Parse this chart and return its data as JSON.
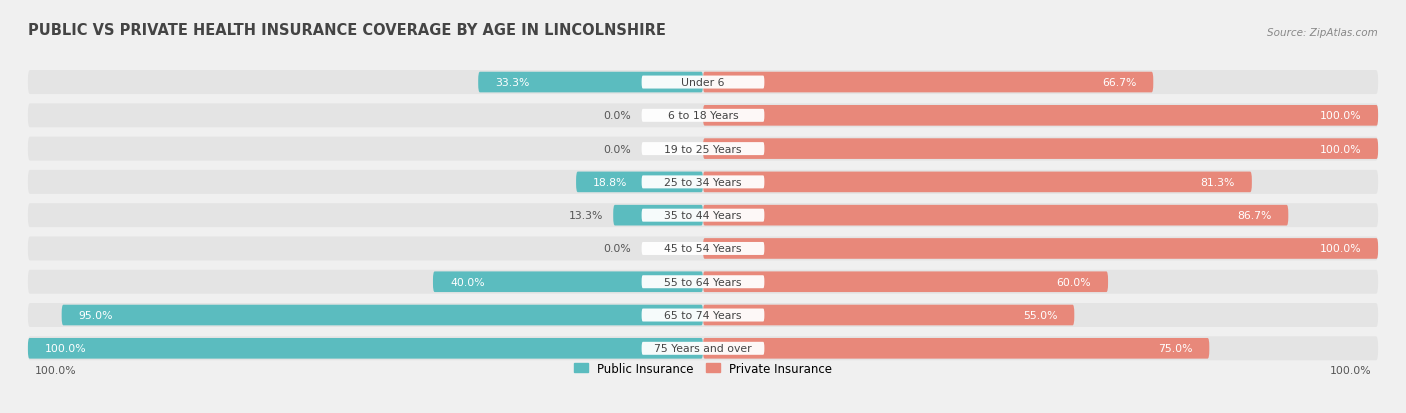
{
  "title": "PUBLIC VS PRIVATE HEALTH INSURANCE COVERAGE BY AGE IN LINCOLNSHIRE",
  "source": "Source: ZipAtlas.com",
  "categories": [
    "Under 6",
    "6 to 18 Years",
    "19 to 25 Years",
    "25 to 34 Years",
    "35 to 44 Years",
    "45 to 54 Years",
    "55 to 64 Years",
    "65 to 74 Years",
    "75 Years and over"
  ],
  "public_values": [
    33.3,
    0.0,
    0.0,
    18.8,
    13.3,
    0.0,
    40.0,
    95.0,
    100.0
  ],
  "private_values": [
    66.7,
    100.0,
    100.0,
    81.3,
    86.7,
    100.0,
    60.0,
    55.0,
    75.0
  ],
  "public_color": "#5bbcbf",
  "private_color": "#e8887a",
  "bg_color": "#f0f0f0",
  "title_color": "#444444",
  "label_color": "#555555",
  "center_label_color": "#444444",
  "bar_height": 0.62,
  "max_val": 100.0,
  "legend_public": "Public Insurance",
  "legend_private": "Private Insurance"
}
